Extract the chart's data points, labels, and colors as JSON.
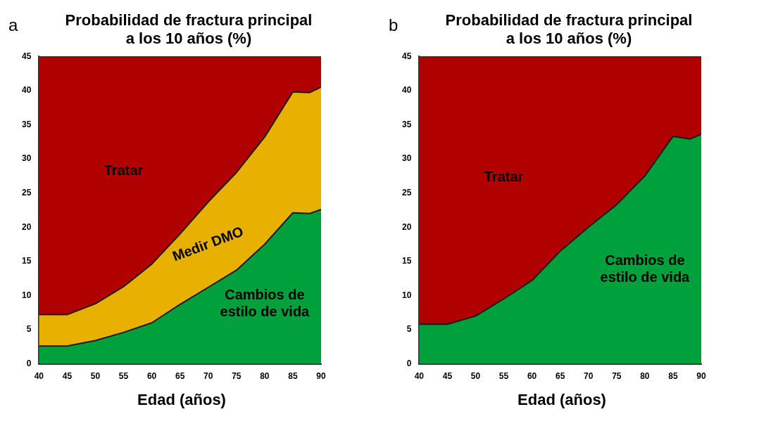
{
  "chart_data": [
    {
      "type": "area",
      "title": "Probabilidad de fractura principal a los 10 años (%)",
      "xlabel": "Edad (años)",
      "annotations": [
        "a"
      ],
      "stacked": true,
      "grid": false,
      "legend": false,
      "x": [
        40,
        45,
        50,
        55,
        60,
        65,
        70,
        75,
        80,
        85,
        88,
        90
      ],
      "xlim": [
        40,
        90
      ],
      "xticks": [
        40,
        45,
        50,
        55,
        60,
        65,
        70,
        75,
        80,
        85,
        90
      ],
      "ylim": [
        0,
        45
      ],
      "yticks": [
        0,
        5,
        10,
        15,
        20,
        25,
        30,
        35,
        40,
        45
      ],
      "series": [
        {
          "name": "Cambios de estilo de vida",
          "color": "#00a03c",
          "values": [
            2.6,
            2.6,
            3.4,
            4.6,
            6.0,
            8.7,
            11.2,
            13.7,
            17.5,
            22.1,
            22.0,
            22.6
          ]
        },
        {
          "name": "Medir DMO",
          "color": "#e8b000",
          "values": [
            4.6,
            4.6,
            5.4,
            6.7,
            8.6,
            10.3,
            12.5,
            14.3,
            15.7,
            17.7,
            17.7,
            17.9
          ]
        },
        {
          "name": "Tratar",
          "color": "#b00000",
          "values": [
            37.8,
            37.8,
            36.2,
            33.7,
            30.4,
            26.0,
            21.3,
            17.0,
            11.8,
            5.2,
            5.3,
            4.5
          ]
        }
      ]
    },
    {
      "type": "area",
      "title": "Probabilidad de fractura principal a los 10 años (%)",
      "xlabel": "Edad (años)",
      "annotations": [
        "b"
      ],
      "stacked": true,
      "grid": false,
      "legend": false,
      "x": [
        40,
        45,
        50,
        55,
        60,
        65,
        70,
        75,
        80,
        85,
        88,
        90
      ],
      "xlim": [
        40,
        90
      ],
      "xticks": [
        40,
        45,
        50,
        55,
        60,
        65,
        70,
        75,
        80,
        85,
        90
      ],
      "ylim": [
        0,
        45
      ],
      "yticks": [
        0,
        5,
        10,
        15,
        20,
        25,
        30,
        35,
        40,
        45
      ],
      "series": [
        {
          "name": "Cambios de estilo de vida",
          "color": "#00a03c",
          "values": [
            5.8,
            5.8,
            7.0,
            9.5,
            12.2,
            16.5,
            20.0,
            23.3,
            27.5,
            33.3,
            32.9,
            33.6
          ]
        },
        {
          "name": "Tratar",
          "color": "#b00000",
          "values": [
            39.2,
            39.2,
            38.0,
            35.5,
            32.8,
            28.5,
            25.0,
            21.7,
            17.5,
            11.7,
            12.1,
            11.4
          ]
        }
      ]
    }
  ]
}
